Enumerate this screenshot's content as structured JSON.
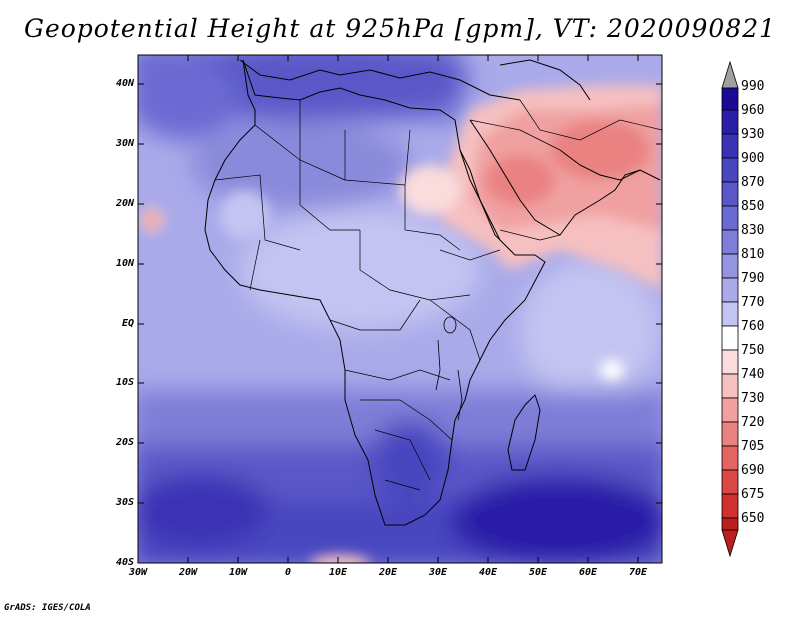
{
  "title": "Geopotential Height at 925hPa [gpm], VT: 2020090821",
  "credit": "GrADS: IGES/COLA",
  "axes": {
    "y_ticks": [
      "40N",
      "30N",
      "20N",
      "10N",
      "EQ",
      "10S",
      "20S",
      "30S",
      "40S"
    ],
    "x_ticks": [
      "30W",
      "20W",
      "10W",
      "0",
      "10E",
      "20E",
      "30E",
      "40E",
      "50E",
      "60E",
      "70E"
    ]
  },
  "colorbar": {
    "levels": [
      "990",
      "960",
      "930",
      "900",
      "870",
      "850",
      "830",
      "810",
      "790",
      "770",
      "760",
      "750",
      "740",
      "730",
      "720",
      "705",
      "690",
      "675",
      "650"
    ],
    "colors": {
      "over": "#a0a0a0",
      "c990": "#1a0a96",
      "c960": "#2a1ea8",
      "c930": "#3a32b4",
      "c900": "#4a46c0",
      "c870": "#5a58c8",
      "c850": "#6a6ad2",
      "c830": "#7e7ed8",
      "c810": "#9494e0",
      "c790": "#aaaaea",
      "c770": "#c4c4f2",
      "c760": "#ffffff",
      "c750": "#fadcdc",
      "c740": "#f6c0c0",
      "c730": "#f0a0a0",
      "c720": "#ea8282",
      "c705": "#e46464",
      "c690": "#dc4848",
      "c675": "#d03030",
      "c650": "#be1e1e"
    }
  }
}
